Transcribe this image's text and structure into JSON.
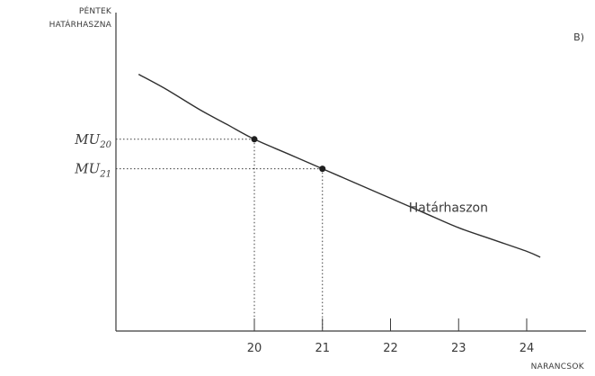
{
  "panel_label": "B)",
  "chart_data": {
    "type": "line",
    "title": "",
    "ylabel_lines": [
      "PÉNTEK",
      "HATÁRHASZNA"
    ],
    "xlabel": "NARANCSOK",
    "x_ticks": [
      "20",
      "21",
      "22",
      "23",
      "24"
    ],
    "y_ticks": [],
    "xlim": [
      18,
      24.5
    ],
    "ylim": [
      0,
      1
    ],
    "grid": false,
    "series": [
      {
        "name": "Határhaszon",
        "x": [
          18.3,
          18.7,
          19.2,
          19.6,
          20,
          20.5,
          21,
          21.5,
          22,
          22.5,
          23,
          23.5,
          24,
          24.2
        ],
        "y": [
          0.87,
          0.82,
          0.75,
          0.7,
          0.65,
          0.6,
          0.55,
          0.5,
          0.45,
          0.4,
          0.35,
          0.31,
          0.27,
          0.25
        ]
      }
    ],
    "highlighted_points": [
      {
        "x": 20,
        "y": 0.65,
        "label_base": "MU",
        "label_sub": "20"
      },
      {
        "x": 21,
        "y": 0.55,
        "label_base": "MU",
        "label_sub": "21"
      }
    ]
  }
}
